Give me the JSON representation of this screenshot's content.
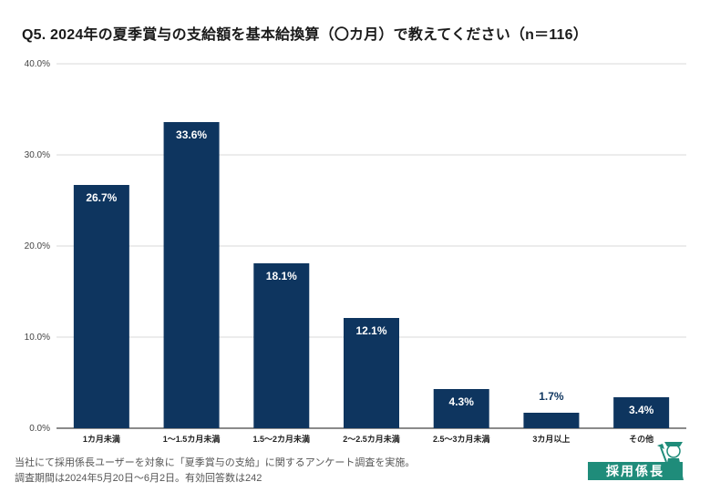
{
  "title": "Q5. 2024年の夏季賞与の支給額を基本給換算（〇カ月）で教えてください（n＝116）",
  "footnotes": {
    "line1": "当社にて採用係長ユーザーを対象に「夏季賞与の支給」に関するアンケート調査を実施。",
    "line2": "調査期間は2024年5月20日〜6月2日。有効回答数は242"
  },
  "logo": {
    "text": "採用係長"
  },
  "colors": {
    "bar": "#0e355f",
    "grid": "#d9d9d9",
    "axis": "#444444",
    "label_inside": "#ffffff",
    "label_outside": "#0e355f",
    "logo": "#1f8c7a"
  },
  "chart_data": {
    "type": "bar",
    "categories": [
      "1カ月未満",
      "1〜1.5カ月未満",
      "1.5〜2カ月未満",
      "2〜2.5カ月未満",
      "2.5〜3カ月未満",
      "3カ月以上",
      "その他"
    ],
    "values": [
      26.7,
      33.6,
      18.1,
      12.1,
      4.3,
      1.7,
      3.4
    ],
    "value_labels": [
      "26.7%",
      "33.6%",
      "18.1%",
      "12.1%",
      "4.3%",
      "1.7%",
      "3.4%"
    ],
    "y_ticks": [
      0,
      10,
      20,
      30,
      40
    ],
    "y_tick_labels": [
      "0.0%",
      "10.0%",
      "20.0%",
      "30.0%",
      "40.0%"
    ],
    "ylim": [
      0,
      40
    ],
    "xlabel": "",
    "ylabel": "",
    "grid": true,
    "legend": "none"
  }
}
